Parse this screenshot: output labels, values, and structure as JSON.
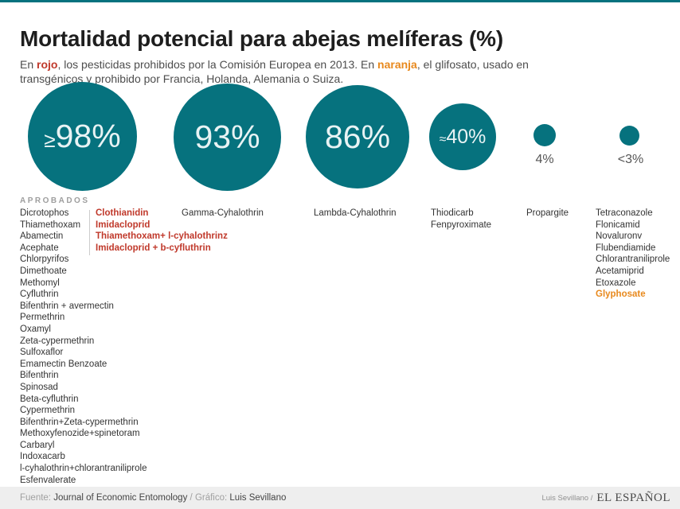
{
  "colors": {
    "teal": "#06727e",
    "red": "#c0392b",
    "orange": "#e8891d",
    "footer_bg": "#eeeeee"
  },
  "header": {
    "title": "Mortalidad potencial para abejas melíferas (%)",
    "subtitle": {
      "s1": "En ",
      "red_word": "rojo",
      "s2": ", los pesticidas prohibidos por la Comisión Europea en 2013. En ",
      "orange_word": "naranja",
      "s3": ", el glifosato, usado en transgénicos y prohibido por Francia, Holanda, Alemania o Suiza."
    }
  },
  "bubbles": [
    {
      "prefix": "≥",
      "number": "98%"
    },
    {
      "prefix": "",
      "number": "93%"
    },
    {
      "prefix": "",
      "number": "86%"
    },
    {
      "prefix": "≈",
      "number": "40%"
    },
    {
      "label": "4%"
    },
    {
      "label": "<3%"
    }
  ],
  "lists": {
    "approved_header": "APROBADOS"
  },
  "chart_data": {
    "type": "bubble",
    "title": "Mortalidad potencial para abejas melíferas (%)",
    "note_red": "pesticidas prohibidos por la Comisión Europea en 2013",
    "note_orange": "glifosato, usado en transgénicos y prohibido por Francia, Holanda, Alemania o Suiza",
    "groups": [
      {
        "label": "≥98%",
        "value": 98,
        "status": "APROBADOS",
        "items": [
          "Dicrotophos",
          "Thiamethoxam",
          "Abamectin",
          "Acephate",
          "Chlorpyrifos",
          "Dimethoate",
          "Methomyl",
          "Cyfluthrin",
          "Bifenthrin + avermectin",
          "Permethrin",
          "Oxamyl",
          "Zeta-cypermethrin",
          "Sulfoxaflor",
          "Emamectin Benzoate",
          "Bifenthrin",
          "Spinosad",
          "Beta-cyfluthrin",
          "Cypermethrin",
          "Bifenthrin+Zeta-cypermethrin",
          "Methoxyfenozide+spinetoram",
          "Carbaryl",
          "Indoxacarb",
          "l-cyhalothrin+chlorantraniliprole",
          "Esfenvalerate"
        ],
        "banned": [
          "Clothianidin",
          "Imidacloprid",
          "Thiamethoxam+ l-cyhalothrinz",
          "Imidacloprid + b-cyfluthrin"
        ]
      },
      {
        "label": "93%",
        "value": 93,
        "items": [
          "Gamma-Cyhalothrin"
        ]
      },
      {
        "label": "86%",
        "value": 86,
        "items": [
          "Lambda-Cyhalothrin"
        ]
      },
      {
        "label": "≈40%",
        "value": 40,
        "items": [
          "Thiodicarb",
          "Fenpyroximate"
        ]
      },
      {
        "label": "4%",
        "value": 4,
        "items": [
          "Propargite"
        ]
      },
      {
        "label": "<3%",
        "value": 3,
        "items": [
          "Tetraconazole",
          "Flonicamid",
          "Novaluronv",
          "Flubendiamide",
          "Chlorantraniliprole",
          "Acetamiprid",
          "Etoxazole",
          {
            "text": "Glyphosate",
            "class": "orange"
          }
        ]
      }
    ]
  },
  "footer": {
    "source_label": "Fuente:",
    "source": "Journal of Economic Entomology",
    "separator": "/",
    "credit_label": "Gráfico:",
    "credit": "Luis Sevillano",
    "brand_credit": "Luis Sevillano /",
    "brand": "EL ESPAÑOL"
  }
}
